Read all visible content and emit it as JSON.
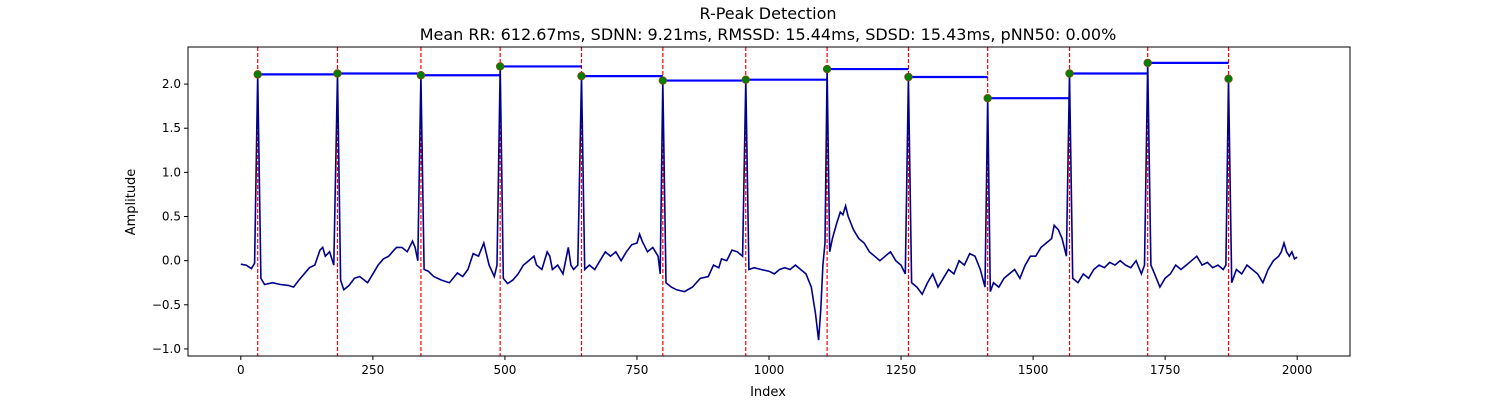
{
  "chart_data": {
    "type": "line",
    "title": "R-Peak Detection",
    "subtitle": "Mean RR: 612.67ms, SDNN: 9.21ms, RMSSD: 15.44ms, SDSD: 15.43ms, pNN50: 0.00%",
    "xlabel": "Index",
    "ylabel": "Amplitude",
    "xlim": [
      -100,
      2100
    ],
    "ylim": [
      -1.08,
      2.42
    ],
    "xticks": [
      0,
      250,
      500,
      750,
      1000,
      1250,
      1500,
      1750,
      2000
    ],
    "yticks": [
      -1.0,
      -0.5,
      0.0,
      0.5,
      1.0,
      1.5,
      2.0
    ],
    "ytick_labels": [
      "−1.0",
      "−0.5",
      "0.0",
      "0.5",
      "1.0",
      "1.5",
      "2.0"
    ],
    "grid": false,
    "colors": {
      "signal": "#00008b",
      "peak_lines": "#ff0000",
      "peak_markers": "#008000",
      "rr_intervals": "#0000ff"
    },
    "peaks": [
      {
        "x": 32,
        "y": 2.11
      },
      {
        "x": 183,
        "y": 2.12
      },
      {
        "x": 341,
        "y": 2.1
      },
      {
        "x": 491,
        "y": 2.2
      },
      {
        "x": 645,
        "y": 2.09
      },
      {
        "x": 799,
        "y": 2.04
      },
      {
        "x": 956,
        "y": 2.05
      },
      {
        "x": 1110,
        "y": 2.17
      },
      {
        "x": 1264,
        "y": 2.08
      },
      {
        "x": 1414,
        "y": 1.84
      },
      {
        "x": 1569,
        "y": 2.12
      },
      {
        "x": 1717,
        "y": 2.24
      },
      {
        "x": 1870,
        "y": 2.06
      }
    ],
    "signal": [
      [
        0,
        -0.04
      ],
      [
        10,
        -0.05
      ],
      [
        20,
        -0.09
      ],
      [
        26,
        -0.03
      ],
      [
        32,
        2.11
      ],
      [
        38,
        -0.2
      ],
      [
        45,
        -0.27
      ],
      [
        60,
        -0.25
      ],
      [
        75,
        -0.27
      ],
      [
        90,
        -0.28
      ],
      [
        100,
        -0.3
      ],
      [
        110,
        -0.22
      ],
      [
        120,
        -0.15
      ],
      [
        130,
        -0.08
      ],
      [
        140,
        -0.05
      ],
      [
        150,
        0.12
      ],
      [
        155,
        0.15
      ],
      [
        160,
        0.05
      ],
      [
        168,
        0.1
      ],
      [
        176,
        -0.05
      ],
      [
        183,
        2.12
      ],
      [
        189,
        -0.22
      ],
      [
        195,
        -0.33
      ],
      [
        205,
        -0.28
      ],
      [
        215,
        -0.2
      ],
      [
        225,
        -0.18
      ],
      [
        240,
        -0.25
      ],
      [
        250,
        -0.15
      ],
      [
        260,
        -0.05
      ],
      [
        270,
        0.02
      ],
      [
        280,
        0.05
      ],
      [
        290,
        0.12
      ],
      [
        295,
        0.15
      ],
      [
        305,
        0.15
      ],
      [
        315,
        0.1
      ],
      [
        325,
        0.22
      ],
      [
        330,
        0.15
      ],
      [
        335,
        0.0
      ],
      [
        341,
        2.1
      ],
      [
        347,
        -0.1
      ],
      [
        355,
        -0.12
      ],
      [
        365,
        -0.18
      ],
      [
        380,
        -0.22
      ],
      [
        395,
        -0.25
      ],
      [
        410,
        -0.14
      ],
      [
        420,
        -0.18
      ],
      [
        430,
        -0.1
      ],
      [
        440,
        0.08
      ],
      [
        450,
        0.05
      ],
      [
        460,
        0.2
      ],
      [
        470,
        -0.05
      ],
      [
        480,
        -0.18
      ],
      [
        485,
        -0.05
      ],
      [
        491,
        2.2
      ],
      [
        497,
        -0.2
      ],
      [
        505,
        -0.26
      ],
      [
        515,
        -0.22
      ],
      [
        525,
        -0.15
      ],
      [
        535,
        -0.05
      ],
      [
        545,
        0.0
      ],
      [
        555,
        0.05
      ],
      [
        560,
        -0.05
      ],
      [
        570,
        -0.1
      ],
      [
        580,
        0.1
      ],
      [
        585,
        0.05
      ],
      [
        590,
        -0.1
      ],
      [
        600,
        -0.05
      ],
      [
        610,
        -0.15
      ],
      [
        620,
        0.15
      ],
      [
        625,
        -0.05
      ],
      [
        630,
        -0.1
      ],
      [
        638,
        -0.05
      ],
      [
        645,
        2.09
      ],
      [
        651,
        -0.1
      ],
      [
        660,
        -0.05
      ],
      [
        670,
        -0.1
      ],
      [
        680,
        0.0
      ],
      [
        690,
        0.1
      ],
      [
        700,
        0.05
      ],
      [
        710,
        0.1
      ],
      [
        720,
        0.0
      ],
      [
        730,
        0.1
      ],
      [
        740,
        0.18
      ],
      [
        750,
        0.2
      ],
      [
        755,
        0.3
      ],
      [
        760,
        0.22
      ],
      [
        770,
        0.1
      ],
      [
        780,
        0.15
      ],
      [
        790,
        0.05
      ],
      [
        794,
        -0.15
      ],
      [
        799,
        2.04
      ],
      [
        805,
        -0.25
      ],
      [
        815,
        -0.3
      ],
      [
        825,
        -0.33
      ],
      [
        840,
        -0.35
      ],
      [
        855,
        -0.3
      ],
      [
        870,
        -0.2
      ],
      [
        885,
        -0.18
      ],
      [
        895,
        -0.05
      ],
      [
        905,
        -0.08
      ],
      [
        910,
        0.02
      ],
      [
        920,
        0.0
      ],
      [
        930,
        0.12
      ],
      [
        940,
        0.1
      ],
      [
        950,
        0.05
      ],
      [
        956,
        2.05
      ],
      [
        962,
        -0.1
      ],
      [
        972,
        -0.08
      ],
      [
        985,
        -0.1
      ],
      [
        1000,
        -0.12
      ],
      [
        1010,
        -0.15
      ],
      [
        1020,
        -0.1
      ],
      [
        1030,
        -0.08
      ],
      [
        1040,
        -0.1
      ],
      [
        1050,
        -0.05
      ],
      [
        1060,
        -0.1
      ],
      [
        1070,
        -0.15
      ],
      [
        1080,
        -0.3
      ],
      [
        1088,
        -0.6
      ],
      [
        1094,
        -0.9
      ],
      [
        1098,
        -0.55
      ],
      [
        1102,
        -0.05
      ],
      [
        1106,
        0.2
      ],
      [
        1110,
        2.17
      ],
      [
        1115,
        0.1
      ],
      [
        1120,
        0.25
      ],
      [
        1128,
        0.42
      ],
      [
        1135,
        0.55
      ],
      [
        1140,
        0.52
      ],
      [
        1145,
        0.62
      ],
      [
        1150,
        0.5
      ],
      [
        1160,
        0.35
      ],
      [
        1170,
        0.25
      ],
      [
        1180,
        0.2
      ],
      [
        1190,
        0.1
      ],
      [
        1200,
        0.05
      ],
      [
        1210,
        0.0
      ],
      [
        1220,
        0.05
      ],
      [
        1230,
        0.1
      ],
      [
        1240,
        0.0
      ],
      [
        1250,
        -0.05
      ],
      [
        1258,
        -0.15
      ],
      [
        1264,
        2.08
      ],
      [
        1270,
        -0.25
      ],
      [
        1280,
        -0.3
      ],
      [
        1290,
        -0.38
      ],
      [
        1300,
        -0.25
      ],
      [
        1310,
        -0.15
      ],
      [
        1320,
        -0.3
      ],
      [
        1330,
        -0.2
      ],
      [
        1340,
        -0.1
      ],
      [
        1350,
        -0.15
      ],
      [
        1360,
        0.0
      ],
      [
        1370,
        -0.05
      ],
      [
        1380,
        0.08
      ],
      [
        1390,
        0.05
      ],
      [
        1400,
        -0.1
      ],
      [
        1409,
        -0.3
      ],
      [
        1414,
        1.84
      ],
      [
        1419,
        -0.35
      ],
      [
        1425,
        -0.25
      ],
      [
        1435,
        -0.3
      ],
      [
        1445,
        -0.2
      ],
      [
        1455,
        -0.15
      ],
      [
        1465,
        -0.1
      ],
      [
        1475,
        -0.2
      ],
      [
        1485,
        -0.05
      ],
      [
        1495,
        0.05
      ],
      [
        1505,
        0.05
      ],
      [
        1515,
        0.15
      ],
      [
        1525,
        0.2
      ],
      [
        1535,
        0.25
      ],
      [
        1540,
        0.4
      ],
      [
        1548,
        0.35
      ],
      [
        1555,
        0.25
      ],
      [
        1563,
        0.05
      ],
      [
        1569,
        2.12
      ],
      [
        1575,
        -0.2
      ],
      [
        1585,
        -0.25
      ],
      [
        1595,
        -0.15
      ],
      [
        1605,
        -0.2
      ],
      [
        1615,
        -0.1
      ],
      [
        1625,
        -0.05
      ],
      [
        1635,
        -0.08
      ],
      [
        1645,
        -0.02
      ],
      [
        1655,
        -0.05
      ],
      [
        1665,
        0.0
      ],
      [
        1675,
        -0.05
      ],
      [
        1685,
        -0.08
      ],
      [
        1695,
        0.0
      ],
      [
        1705,
        -0.15
      ],
      [
        1711,
        -0.05
      ],
      [
        1717,
        2.24
      ],
      [
        1723,
        -0.05
      ],
      [
        1730,
        -0.15
      ],
      [
        1740,
        -0.3
      ],
      [
        1750,
        -0.2
      ],
      [
        1760,
        -0.15
      ],
      [
        1770,
        -0.05
      ],
      [
        1780,
        -0.1
      ],
      [
        1790,
        -0.05
      ],
      [
        1800,
        0.0
      ],
      [
        1810,
        0.05
      ],
      [
        1820,
        -0.05
      ],
      [
        1830,
        -0.02
      ],
      [
        1840,
        -0.08
      ],
      [
        1850,
        -0.05
      ],
      [
        1860,
        -0.1
      ],
      [
        1865,
        -0.05
      ],
      [
        1870,
        2.06
      ],
      [
        1876,
        -0.25
      ],
      [
        1885,
        -0.1
      ],
      [
        1895,
        -0.15
      ],
      [
        1905,
        -0.05
      ],
      [
        1915,
        -0.1
      ],
      [
        1925,
        -0.15
      ],
      [
        1935,
        -0.25
      ],
      [
        1945,
        -0.1
      ],
      [
        1955,
        0.0
      ],
      [
        1965,
        0.05
      ],
      [
        1970,
        0.1
      ],
      [
        1975,
        0.2
      ],
      [
        1980,
        0.1
      ],
      [
        1985,
        0.05
      ],
      [
        1990,
        0.1
      ],
      [
        1995,
        0.02
      ],
      [
        2000,
        0.04
      ]
    ]
  }
}
